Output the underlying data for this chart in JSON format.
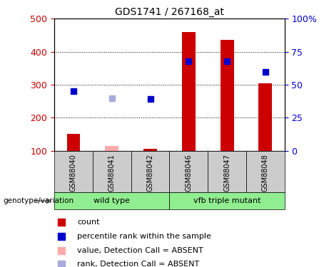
{
  "title": "GDS1741 / 267168_at",
  "samples": [
    "GSM88040",
    "GSM88041",
    "GSM88042",
    "GSM88046",
    "GSM88047",
    "GSM88048"
  ],
  "groups": [
    {
      "name": "wild type",
      "span": [
        0,
        3
      ],
      "color": "#90EE90"
    },
    {
      "name": "vfb triple mutant",
      "span": [
        3,
        6
      ],
      "color": "#90EE90"
    }
  ],
  "bar_values": [
    152,
    null,
    107,
    460,
    435,
    305
  ],
  "bar_values_absent": [
    null,
    115,
    null,
    null,
    null,
    null
  ],
  "rank_values": [
    280,
    null,
    258,
    372,
    372,
    340
  ],
  "rank_values_absent": [
    null,
    260,
    null,
    null,
    null,
    null
  ],
  "ylim_left": [
    100,
    500
  ],
  "left_ticks": [
    100,
    200,
    300,
    400,
    500
  ],
  "right_ticks": [
    0,
    25,
    50,
    75,
    100
  ],
  "right_tick_labels": [
    "0",
    "25",
    "50",
    "75",
    "100%"
  ],
  "bar_color": "#CC0000",
  "bar_color_absent": "#FFAAAA",
  "rank_color": "#0000CC",
  "rank_color_absent": "#AAAADD",
  "bar_width": 0.35,
  "left_tick_color": "#CC0000",
  "right_tick_color": "#0000CC",
  "grid_color": "black",
  "background_label": "#CCCCCC",
  "genotype_label": "genotype/variation",
  "legend_items": [
    {
      "label": "count",
      "color": "#CC0000"
    },
    {
      "label": "percentile rank within the sample",
      "color": "#0000CC"
    },
    {
      "label": "value, Detection Call = ABSENT",
      "color": "#FFAAAA"
    },
    {
      "label": "rank, Detection Call = ABSENT",
      "color": "#AAAADD"
    }
  ]
}
